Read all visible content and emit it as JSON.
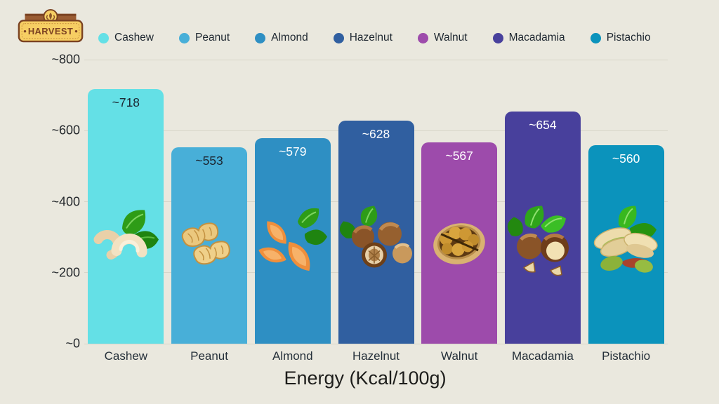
{
  "logo": {
    "brand": "HARVEST"
  },
  "y_axis": {
    "ticks": [
      "~800",
      "~600",
      "~400",
      "~200",
      "~0"
    ]
  },
  "chart_data": {
    "type": "bar",
    "title": "Energy (Kcal/100g)",
    "xlabel": "",
    "ylabel": "",
    "ylim": [
      0,
      800
    ],
    "grid": true,
    "legend_position": "top",
    "categories": [
      "Cashew",
      "Peanut",
      "Almond",
      "Hazelnut",
      "Walnut",
      "Macadamia",
      "Pistachio"
    ],
    "values": [
      718,
      553,
      579,
      628,
      567,
      654,
      560
    ],
    "value_labels": [
      "~718",
      "~553",
      "~579",
      "~628",
      "~567",
      "~654",
      "~560"
    ],
    "colors": [
      "#64E0E6",
      "#48AFD8",
      "#2E8FC3",
      "#305FA0",
      "#9D4BAB",
      "#48409C",
      "#0B93BC"
    ],
    "value_text_colors": [
      "#1B2530",
      "#1B2530",
      "#FFFFFF",
      "#FFFFFF",
      "#FFFFFF",
      "#FFFFFF",
      "#FFFFFF"
    ],
    "background_color": "#EAE8DE",
    "gridline_color": "#D8D5C9",
    "illustrations": [
      "cashew-nuts",
      "peanut-shells",
      "almonds-with-leaves",
      "hazelnuts-with-leaves",
      "walnut-half",
      "macadamia-with-leaves",
      "pistachios-with-leaves"
    ]
  }
}
